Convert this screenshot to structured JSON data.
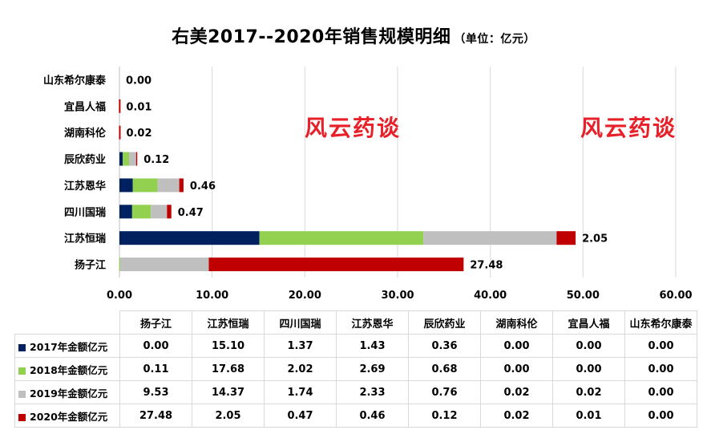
{
  "title": "右美2017--2020年销售规模明细",
  "unit": "（单位：亿元）",
  "watermark": "风云药谈",
  "chart_data": {
    "type": "bar",
    "orientation": "horizontal",
    "stacked": true,
    "categories": [
      "扬子江",
      "江苏恒瑞",
      "四川国瑞",
      "江苏恩华",
      "辰欣药业",
      "湖南科伦",
      "宜昌人福",
      "山东希尔康泰"
    ],
    "series": [
      {
        "name": "2017年金额亿元",
        "color": "#002060",
        "values": [
          0.0,
          15.1,
          1.37,
          1.43,
          0.36,
          0.0,
          0.0,
          0.0
        ]
      },
      {
        "name": "2018年金额亿元",
        "color": "#92d050",
        "values": [
          0.11,
          17.68,
          2.02,
          2.69,
          0.68,
          0.0,
          0.0,
          0.0
        ]
      },
      {
        "name": "2019年金额亿元",
        "color": "#bfbfbf",
        "values": [
          9.53,
          14.37,
          1.74,
          2.33,
          0.76,
          0.02,
          0.02,
          0.0
        ]
      },
      {
        "name": "2020年金额亿元",
        "color": "#c00000",
        "values": [
          27.48,
          2.05,
          0.47,
          0.46,
          0.12,
          0.02,
          0.01,
          0.0
        ]
      }
    ],
    "data_labels": [
      "27.48",
      "2.05",
      "0.47",
      "0.46",
      "0.12",
      "0.02",
      "0.01",
      "0.00"
    ],
    "x_ticks": [
      "0.00",
      "10.00",
      "20.00",
      "30.00",
      "40.00",
      "50.00",
      "60.00"
    ],
    "xlim": [
      0,
      60
    ],
    "grid": true,
    "legend": "data table below chart",
    "table": {
      "rows": [
        [
          "0.00",
          "15.10",
          "1.37",
          "1.43",
          "0.36",
          "0.00",
          "0.00",
          "0.00"
        ],
        [
          "0.11",
          "17.68",
          "2.02",
          "2.69",
          "0.68",
          "0.00",
          "0.00",
          "0.00"
        ],
        [
          "9.53",
          "14.37",
          "1.74",
          "2.33",
          "0.76",
          "0.02",
          "0.02",
          "0.00"
        ],
        [
          "27.48",
          "2.05",
          "0.47",
          "0.46",
          "0.12",
          "0.02",
          "0.01",
          "0.00"
        ]
      ]
    }
  }
}
